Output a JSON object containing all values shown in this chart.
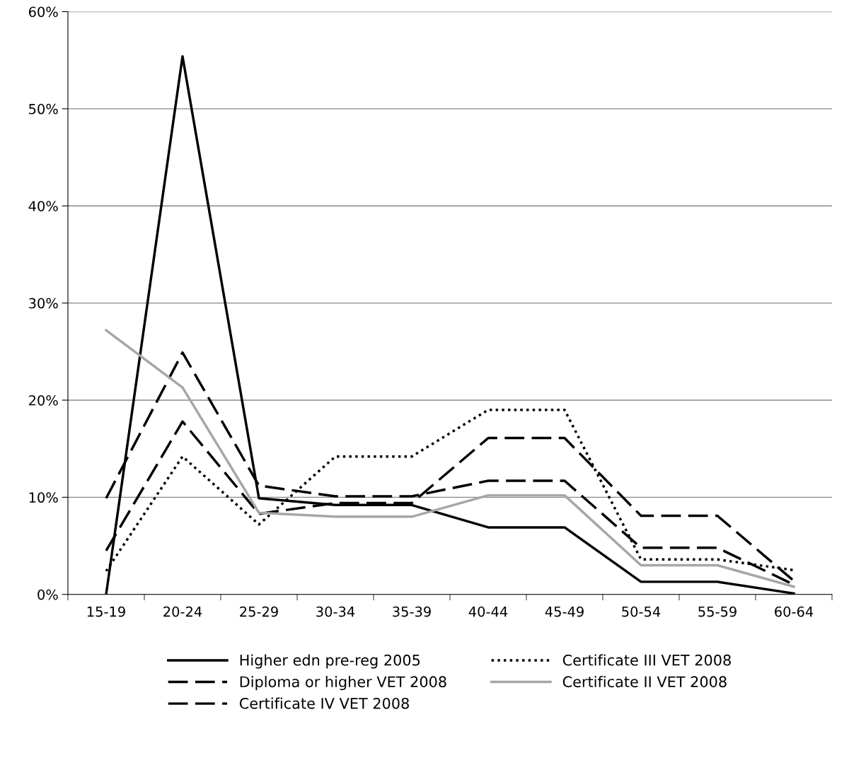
{
  "chart_data": {
    "type": "line",
    "categories": [
      "15-19",
      "20-24",
      "25-29",
      "30-34",
      "35-39",
      "40-44",
      "45-49",
      "50-54",
      "55-59",
      "60-64"
    ],
    "ylim": [
      0,
      60
    ],
    "yticks": [
      {
        "value": 0,
        "label": "0%"
      },
      {
        "value": 10,
        "label": "10%"
      },
      {
        "value": 20,
        "label": "20%"
      },
      {
        "value": 30,
        "label": "30%"
      },
      {
        "value": 40,
        "label": "40%"
      },
      {
        "value": 50,
        "label": "50%"
      },
      {
        "value": 60,
        "label": "60%"
      }
    ],
    "grid": "y",
    "legend": "bottom",
    "marker": "none",
    "series": [
      {
        "name": "Higher edn pre-reg 2005",
        "color": "#000000",
        "line_style": "solid",
        "values": [
          0,
          55.4,
          9.9,
          9.2,
          9.2,
          6.9,
          6.9,
          1.3,
          1.3,
          0.1
        ]
      },
      {
        "name": "Diploma or higher VET 2008",
        "color": "#000000",
        "line_style": "dashed",
        "values": [
          4.5,
          17.8,
          8.3,
          9.4,
          9.4,
          16.1,
          16.1,
          8.1,
          8.1,
          1.4
        ]
      },
      {
        "name": "Certificate IV VET 2008",
        "color": "#000000",
        "line_style": "dashed",
        "values": [
          9.9,
          24.9,
          11.2,
          10.1,
          10.1,
          11.7,
          11.7,
          4.8,
          4.8,
          1.0
        ]
      },
      {
        "name": "Certificate III VET 2008",
        "color": "#000000",
        "line_style": "dotted",
        "values": [
          2.4,
          14.2,
          7.2,
          14.2,
          14.2,
          19.0,
          19.0,
          3.6,
          3.6,
          2.5
        ]
      },
      {
        "name": "Certificate II VET 2008",
        "color": "#a6a6a6",
        "line_style": "solid",
        "values": [
          27.2,
          21.3,
          8.4,
          8.0,
          8.0,
          10.2,
          10.2,
          3.0,
          3.0,
          0.8
        ]
      }
    ]
  }
}
